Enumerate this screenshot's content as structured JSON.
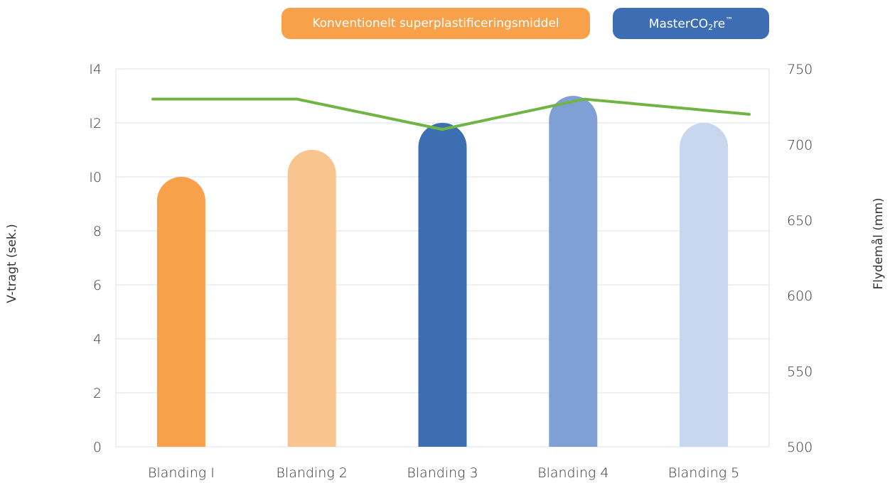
{
  "legend": {
    "conventional": {
      "label": "Konventionelt superplastificeringsmiddel",
      "color": "#F8A04A"
    },
    "masterco2re": {
      "prefix": "MasterCO",
      "sub": "2",
      "suffix": "re",
      "sup": "™",
      "color": "#3D6EB4"
    }
  },
  "chart_data": {
    "type": "bar",
    "categories": [
      "Blanding 1",
      "Blanding 2",
      "Blanding 3",
      "Blanding 4",
      "Blanding 5"
    ],
    "series": [
      {
        "name": "V-tragt (sek.)",
        "axis": "left",
        "type": "bar",
        "values": [
          10,
          11,
          12,
          13,
          12
        ],
        "colors": [
          "#F8A04A",
          "#FAC48F",
          "#3D6EB4",
          "#7FA0D4",
          "#C8D6EE"
        ]
      },
      {
        "name": "Flydemål (mm)",
        "axis": "right",
        "type": "line",
        "values": [
          730,
          730,
          710,
          730,
          720
        ],
        "color": "#70B544"
      }
    ],
    "ylabel": "V-tragt (sek.)",
    "y2label": "Flydemål (mm)",
    "ylim": [
      0,
      14
    ],
    "y2lim": [
      500,
      750
    ],
    "yticks": [
      "0",
      "2",
      "4",
      "6",
      "8",
      "I0",
      "I2",
      "I4"
    ],
    "y2ticks": [
      "500",
      "550",
      "600",
      "650",
      "700",
      "750"
    ],
    "xticklabels": [
      "Blanding I",
      "Blanding 2",
      "Blanding 3",
      "Blanding 4",
      "Blanding 5"
    ],
    "grid": true
  }
}
